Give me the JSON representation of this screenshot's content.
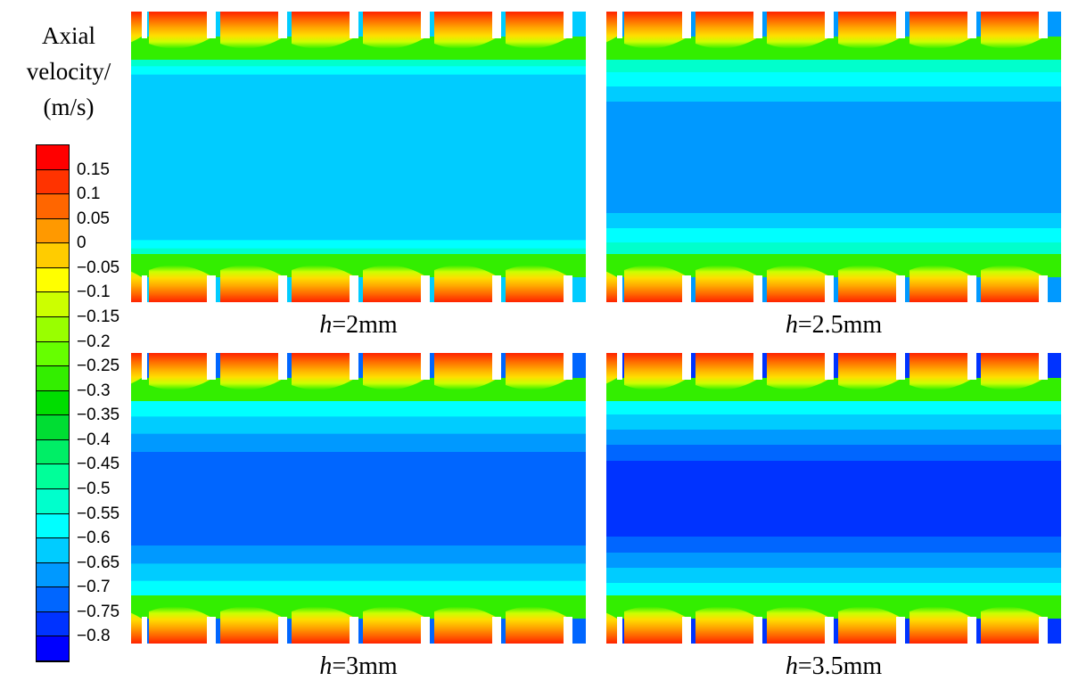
{
  "legend": {
    "title_lines": [
      "Axial",
      "velocity/",
      "(m/s)"
    ],
    "levels": [
      "0.15",
      "0.1",
      "0.05",
      "0",
      "−0.05",
      "−0.1",
      "−0.15",
      "−0.2",
      "−0.25",
      "−0.3",
      "−0.35",
      "−0.4",
      "−0.45",
      "−0.5",
      "−0.55",
      "−0.6",
      "−0.65",
      "−0.7",
      "−0.75",
      "−0.8"
    ],
    "colors": [
      "#ff0000",
      "#ff3300",
      "#ff6600",
      "#ff9900",
      "#ffcc00",
      "#ffff00",
      "#ccff00",
      "#99ff00",
      "#66ff00",
      "#33ee00",
      "#00dd00",
      "#00dd33",
      "#00ee66",
      "#00ff99",
      "#00ffcc",
      "#00ffff",
      "#00ccff",
      "#0099ff",
      "#0066ff",
      "#0033ff",
      "#0000ff"
    ]
  },
  "panels": [
    {
      "var": "h",
      "value": "=2mm",
      "core_color": "#00ccff",
      "bands": [
        "#00ffcc",
        "#00ffff",
        "#00ccff"
      ]
    },
    {
      "var": "h",
      "value": "=2.5mm",
      "core_color": "#0099ff",
      "bands": [
        "#00ffcc",
        "#00ffff",
        "#00ccff"
      ]
    },
    {
      "var": "h",
      "value": "=3mm",
      "core_color": "#0066ff",
      "bands": [
        "#00ffff",
        "#00ccff",
        "#0099ff"
      ]
    },
    {
      "var": "h",
      "value": "=3.5mm",
      "core_color": "#0033ff",
      "bands": [
        "#00ffff",
        "#00ccff",
        "#0099ff",
        "#0066ff"
      ]
    }
  ]
}
